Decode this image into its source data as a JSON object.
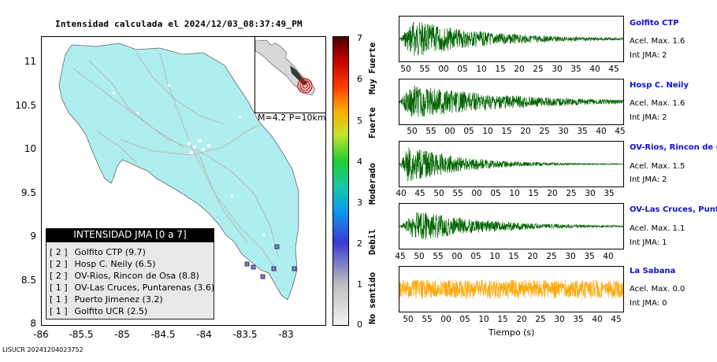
{
  "title": "Intensidad calculada el 2024/12/03_08:37:49_PM",
  "footer": "LISUCR 20241204023752",
  "map": {
    "y_ticks": [
      "11",
      "10.5",
      "10",
      "9.5",
      "9",
      "8.5",
      "8"
    ],
    "x_ticks": [
      "-86",
      "-85.5",
      "-85",
      "-84.5",
      "-84",
      "-83.5",
      "-83"
    ],
    "land_color": "#aeeeee",
    "inset_caption": "M=4.2 P=10km",
    "legend_title": "INTENSIDAD JMA [0 a 7]",
    "legend_rows": [
      {
        "num": "[ 2 ]",
        "name": "Golfito CTP (9.7)"
      },
      {
        "num": "[ 2 ]",
        "name": "Hosp C. Neily (6.5)"
      },
      {
        "num": "[ 2 ]",
        "name": "OV-Rios, Rincon de Osa (8.8)"
      },
      {
        "num": "[ 1 ]",
        "name": "OV-Las Cruces, Puntarenas (3.6)"
      },
      {
        "num": "[ 1 ]",
        "name": "Puerto Jimenez (3.2)"
      },
      {
        "num": "[ 1 ]",
        "name": "Golfito UCR (2.5)"
      }
    ]
  },
  "scale": {
    "numbers": [
      "7",
      "6",
      "5",
      "4",
      "3",
      "2",
      "1",
      "0"
    ],
    "words": [
      "Muy Fuerte",
      "Fuerte",
      "Moderado",
      "Debil",
      "No sentido"
    ]
  },
  "traces": {
    "x_label": "Tiempo (s)",
    "stations": [
      {
        "name": "Golfito CTP",
        "accel": "Acel. Max. 1.6",
        "int": "Int JMA: 2",
        "color": "#006400",
        "ticks": [
          "50",
          "55",
          "00",
          "05",
          "10",
          "15",
          "20",
          "25",
          "30",
          "35",
          "40",
          "45"
        ]
      },
      {
        "name": "Hosp C. Neily",
        "accel": "Acel. Max. 1.6",
        "int": "Int JMA: 2",
        "color": "#006400",
        "ticks": [
          "50",
          "55",
          "00",
          "05",
          "10",
          "15",
          "20",
          "25",
          "30",
          "35",
          "40",
          "45"
        ]
      },
      {
        "name": "OV-Rios, Rincon de Os",
        "accel": "Acel. Max. 1.5",
        "int": "Int JMA: 2",
        "color": "#006400",
        "ticks": [
          "40",
          "45",
          "50",
          "55",
          "00",
          "05",
          "10",
          "15",
          "20",
          "25",
          "30",
          "35"
        ]
      },
      {
        "name": "OV-Las Cruces, Puntar",
        "accel": "Acel. Max. 1.1",
        "int": "Int JMA: 1",
        "color": "#006400",
        "ticks": [
          "45",
          "50",
          "55",
          "00",
          "05",
          "10",
          "15",
          "20",
          "25",
          "30",
          "35",
          "40"
        ]
      },
      {
        "name": "La Sabana",
        "accel": "Acel. Max. 0.0",
        "int": "Int JMA: 0",
        "color": "#ffa500",
        "ticks": [
          "50",
          "55",
          "00",
          "05",
          "10",
          "15",
          "20",
          "25",
          "30",
          "35",
          "40",
          "45"
        ]
      }
    ]
  }
}
